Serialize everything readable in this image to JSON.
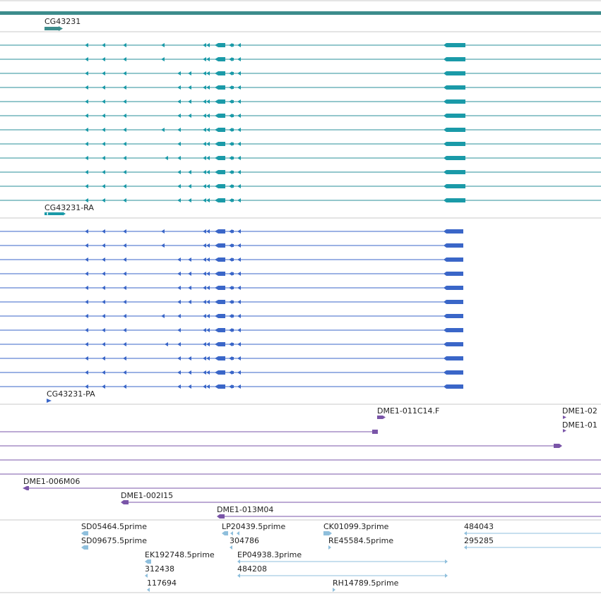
{
  "tracks": {
    "gene": {
      "label": "CG43231",
      "color": "#3c8c8c"
    },
    "transcripts_ra": {
      "label": "CG43231-RA",
      "color": "#1a9aa8",
      "line_color": "#2a8f9a",
      "row_count": 12
    },
    "transcripts_pa": {
      "label": "CG43231-PA",
      "color": "#3a66c8",
      "line_color": "#3a66c8",
      "row_count": 12
    },
    "clones": {
      "color": "#7a55a8",
      "labels": [
        "DME1-011C14.F",
        "DME1-02",
        "DME1-01",
        "DME1-006M06",
        "DME1-002I15",
        "DME1-013M04"
      ]
    },
    "ests": {
      "color": "#8fbfdc",
      "labels": [
        "SD05464.5prime",
        "LP20439.5prime",
        "CK01099.3prime",
        "484043",
        "SD09675.5prime",
        "304786",
        "RE45584.5prime",
        "295285",
        "EK192748.5prime",
        "EP04938.3prime",
        "312438",
        "484208",
        "117694",
        "RH14789.5prime"
      ]
    }
  },
  "colors": {
    "divider": "#c8c8c8",
    "top_bar": "#3c8c8c",
    "label_text": "#222222"
  }
}
